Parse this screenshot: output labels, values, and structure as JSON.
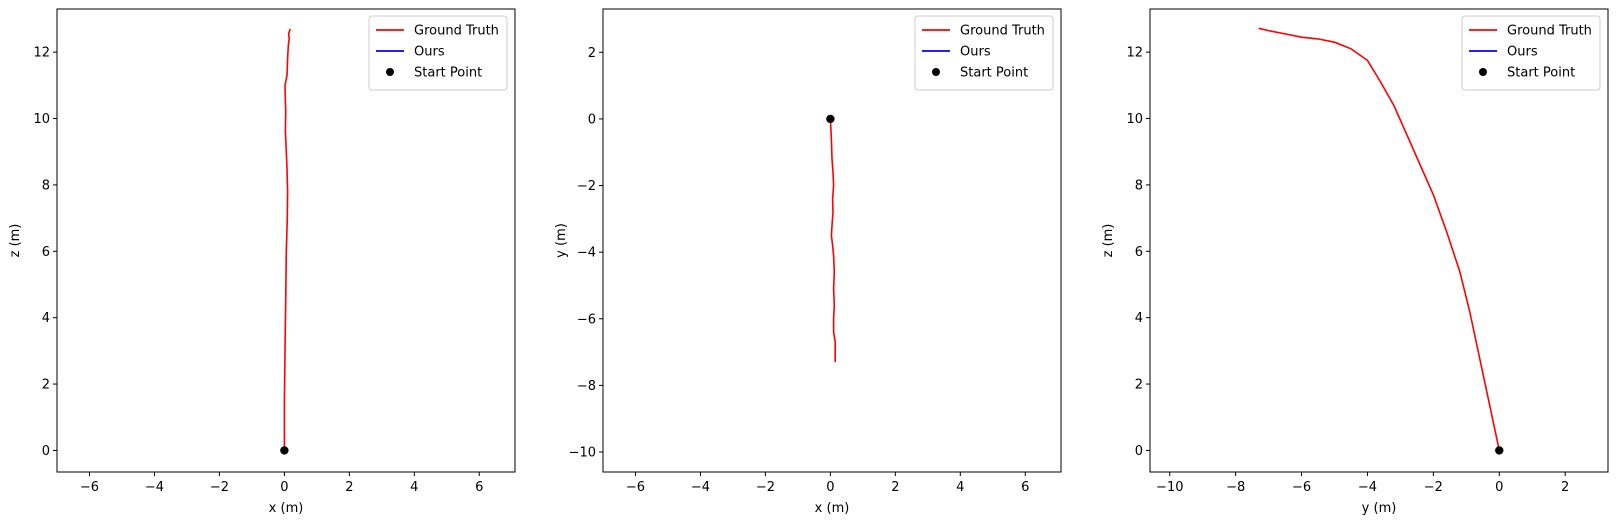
{
  "chart_data": [
    {
      "type": "line",
      "xlabel": "x (m)",
      "ylabel": "z (m)",
      "xlim": [
        -7,
        7.1
      ],
      "ylim": [
        -0.65,
        13.3
      ],
      "xticks": [
        -6,
        -4,
        -2,
        0,
        2,
        4,
        6
      ],
      "yticks": [
        0,
        2,
        4,
        6,
        8,
        10,
        12
      ],
      "grid": false,
      "legend_position": "upper right",
      "legend": [
        "Ground Truth",
        "Ours",
        "Start Point"
      ],
      "series": [
        {
          "name": "Ground Truth",
          "color": "#ff0000",
          "points": [
            [
              0.0,
              0.0
            ],
            [
              0.0,
              1.5
            ],
            [
              0.02,
              3.0
            ],
            [
              0.04,
              4.5
            ],
            [
              0.06,
              6.0
            ],
            [
              0.09,
              7.0
            ],
            [
              0.1,
              7.8
            ],
            [
              0.08,
              8.5
            ],
            [
              0.06,
              9.0
            ],
            [
              0.03,
              9.6
            ],
            [
              0.04,
              10.2
            ],
            [
              0.02,
              11.0
            ],
            [
              0.08,
              11.3
            ],
            [
              0.1,
              11.8
            ],
            [
              0.12,
              12.2
            ],
            [
              0.15,
              12.4
            ],
            [
              0.13,
              12.55
            ],
            [
              0.18,
              12.7
            ]
          ]
        },
        {
          "name": "Ours",
          "color": "#0000ff",
          "points": []
        }
      ],
      "start_point": {
        "label": "Start Point",
        "x": 0,
        "y": 0,
        "color": "#000000"
      }
    },
    {
      "type": "line",
      "xlabel": "x (m)",
      "ylabel": "y (m)",
      "xlim": [
        -7,
        7.1
      ],
      "ylim": [
        -10.6,
        3.3
      ],
      "xticks": [
        -6,
        -4,
        -2,
        0,
        2,
        4,
        6
      ],
      "yticks": [
        -10,
        -8,
        -6,
        -4,
        -2,
        0,
        2
      ],
      "grid": false,
      "legend_position": "upper right",
      "legend": [
        "Ground Truth",
        "Ours",
        "Start Point"
      ],
      "series": [
        {
          "name": "Ground Truth",
          "color": "#ff0000",
          "points": [
            [
              0.0,
              0.0
            ],
            [
              0.03,
              -0.6
            ],
            [
              0.05,
              -1.2
            ],
            [
              0.08,
              -1.6
            ],
            [
              0.1,
              -2.0
            ],
            [
              0.07,
              -2.4
            ],
            [
              0.08,
              -2.8
            ],
            [
              0.05,
              -3.2
            ],
            [
              0.03,
              -3.5
            ],
            [
              0.07,
              -3.8
            ],
            [
              0.1,
              -4.1
            ],
            [
              0.12,
              -4.6
            ],
            [
              0.1,
              -5.1
            ],
            [
              0.12,
              -5.6
            ],
            [
              0.1,
              -6.0
            ],
            [
              0.1,
              -6.4
            ],
            [
              0.15,
              -6.7
            ],
            [
              0.15,
              -7.0
            ],
            [
              0.15,
              -7.3
            ]
          ]
        },
        {
          "name": "Ours",
          "color": "#0000ff",
          "points": []
        }
      ],
      "start_point": {
        "label": "Start Point",
        "x": 0,
        "y": 0,
        "color": "#000000"
      }
    },
    {
      "type": "line",
      "xlabel": "y (m)",
      "ylabel": "z (m)",
      "xlim": [
        -10.6,
        3.3
      ],
      "ylim": [
        -0.65,
        13.3
      ],
      "xticks": [
        -10,
        -8,
        -6,
        -4,
        -2,
        0,
        2
      ],
      "yticks": [
        0,
        2,
        4,
        6,
        8,
        10,
        12
      ],
      "grid": false,
      "legend_position": "upper right",
      "legend": [
        "Ground Truth",
        "Ours",
        "Start Point"
      ],
      "series": [
        {
          "name": "Ground Truth",
          "color": "#ff0000",
          "points": [
            [
              0.0,
              0.0
            ],
            [
              -0.3,
              1.4
            ],
            [
              -0.6,
              2.8
            ],
            [
              -0.9,
              4.2
            ],
            [
              -1.2,
              5.4
            ],
            [
              -1.6,
              6.6
            ],
            [
              -2.0,
              7.7
            ],
            [
              -2.4,
              8.6
            ],
            [
              -2.8,
              9.5
            ],
            [
              -3.2,
              10.4
            ],
            [
              -3.6,
              11.1
            ],
            [
              -4.0,
              11.75
            ],
            [
              -4.5,
              12.1
            ],
            [
              -5.0,
              12.3
            ],
            [
              -5.5,
              12.4
            ],
            [
              -6.0,
              12.45
            ],
            [
              -6.5,
              12.55
            ],
            [
              -7.0,
              12.65
            ],
            [
              -7.3,
              12.72
            ]
          ]
        },
        {
          "name": "Ours",
          "color": "#0000ff",
          "points": []
        }
      ],
      "start_point": {
        "label": "Start Point",
        "x": 0,
        "y": 0,
        "color": "#000000"
      }
    }
  ]
}
